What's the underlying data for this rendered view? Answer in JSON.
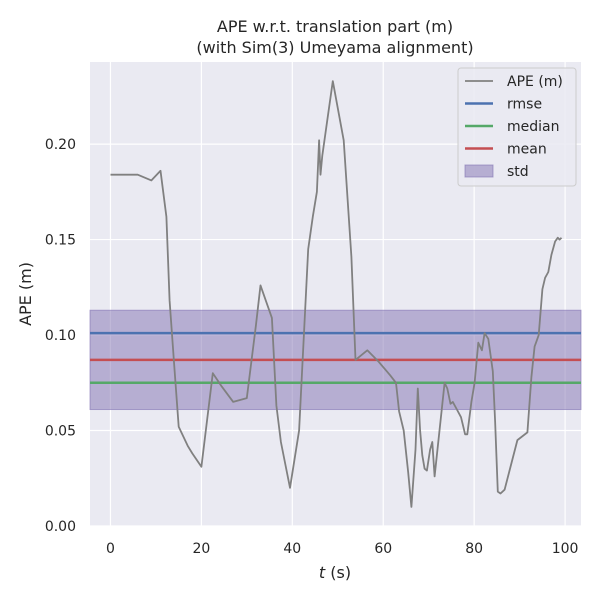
{
  "chart_data": {
    "type": "line",
    "title_line1": "APE w.r.t. translation part (m)",
    "title_line2": "(with Sim(3) Umeyama alignment)",
    "xlabel_var": "t",
    "xlabel_unit": " (s)",
    "ylabel": "APE (m)",
    "xlim": [
      -4.5,
      103.5
    ],
    "ylim": [
      0.0,
      0.243
    ],
    "xticks": [
      0,
      20,
      40,
      60,
      80,
      100
    ],
    "xtick_labels": [
      "0",
      "20",
      "40",
      "60",
      "80",
      "100"
    ],
    "yticks": [
      0.0,
      0.05,
      0.1,
      0.15,
      0.2
    ],
    "ytick_labels": [
      "0.00",
      "0.05",
      "0.10",
      "0.15",
      "0.20"
    ],
    "grid": true,
    "legend_position": "top-right",
    "series": [
      {
        "name": "APE (m)",
        "color": "#808080",
        "x": [
          0,
          3,
          6,
          9,
          11,
          12.3,
          13,
          14,
          15,
          17,
          18,
          20,
          22.5,
          24.5,
          27,
          30,
          32,
          33,
          35.5,
          36.5,
          37.5,
          39.5,
          41.5,
          43.5,
          44.5,
          45.4,
          45.9,
          46.2,
          46.6,
          48.9,
          51.3,
          53,
          53.9,
          56.5,
          59,
          61.5,
          62.8,
          63.5,
          64.5,
          65.5,
          66.2,
          67.1,
          67.6,
          68.1,
          68.6,
          69.1,
          69.6,
          70.3,
          70.8,
          71.3,
          73.5,
          74.1,
          74.8,
          75.3,
          76.2,
          77.1,
          77.6,
          78,
          78.5,
          79.4,
          80.1,
          80.9,
          81.7,
          82.3,
          83.1,
          84.1,
          84.6,
          85.2,
          85.8,
          86.7,
          89.5,
          91.7,
          92.6,
          93.3,
          93.6,
          94.2,
          95,
          95.6,
          96.3,
          97,
          97.8,
          98.4,
          98.8,
          99.2
        ],
        "values": [
          0.184,
          0.184,
          0.184,
          0.181,
          0.186,
          0.162,
          0.118,
          0.085,
          0.052,
          0.042,
          0.038,
          0.031,
          0.08,
          0.073,
          0.065,
          0.067,
          0.105,
          0.126,
          0.109,
          0.063,
          0.044,
          0.02,
          0.05,
          0.145,
          0.162,
          0.175,
          0.202,
          0.184,
          0.194,
          0.233,
          0.202,
          0.141,
          0.087,
          0.092,
          0.086,
          0.079,
          0.075,
          0.06,
          0.05,
          0.028,
          0.01,
          0.04,
          0.072,
          0.05,
          0.037,
          0.03,
          0.029,
          0.04,
          0.044,
          0.026,
          0.075,
          0.072,
          0.064,
          0.065,
          0.061,
          0.057,
          0.052,
          0.048,
          0.048,
          0.065,
          0.075,
          0.096,
          0.092,
          0.101,
          0.098,
          0.081,
          0.055,
          0.018,
          0.017,
          0.019,
          0.045,
          0.049,
          0.078,
          0.094,
          0.096,
          0.1,
          0.124,
          0.13,
          0.133,
          0.142,
          0.149,
          0.151,
          0.15,
          0.151
        ]
      },
      {
        "name": "rmse",
        "color": "#4c72b0",
        "value": 0.101
      },
      {
        "name": "median",
        "color": "#55a868",
        "value": 0.075
      },
      {
        "name": "mean",
        "color": "#c44e52",
        "value": 0.087
      },
      {
        "name": "std",
        "color": "#8172b2",
        "band": [
          0.061,
          0.113
        ]
      }
    ]
  }
}
